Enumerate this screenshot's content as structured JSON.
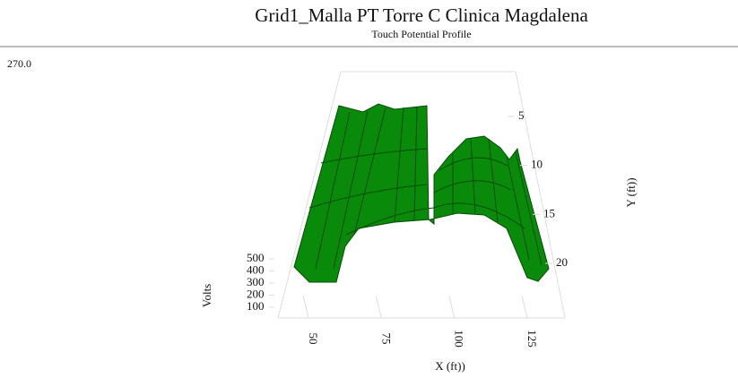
{
  "chart_data": {
    "type": "surface",
    "title": "Grid1_Malla PT Torre C Clinica Magdalena",
    "subtitle": "Touch Potential Profile",
    "corner_label": "270.0",
    "xlabel": "X (ft))",
    "ylabel": "Y (ft))",
    "zlabel": "Volts",
    "xticks": [
      50,
      75,
      100,
      125
    ],
    "yticks": [
      5,
      10,
      15,
      20
    ],
    "zticks": [
      100,
      200,
      300,
      400,
      500
    ],
    "color": "#0a8a0a"
  }
}
